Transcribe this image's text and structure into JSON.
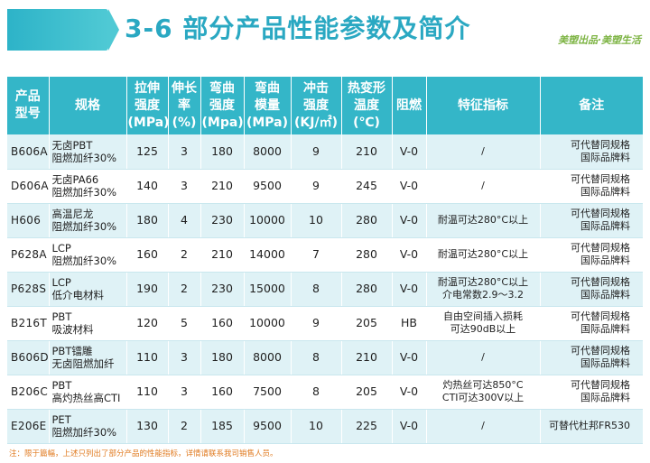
{
  "header": {
    "title": "3-6 部分产品性能参数及简介",
    "brand": "美塑出品·美塑生活",
    "accent_color": "#34b6c8"
  },
  "table": {
    "columns": [
      [
        "产品",
        "型号"
      ],
      [
        "规格"
      ],
      [
        "拉伸",
        "强度",
        "(MPa)"
      ],
      [
        "伸长",
        "率",
        "(%)"
      ],
      [
        "弯曲",
        "强度",
        "(Mpa)"
      ],
      [
        "弯曲",
        "模量",
        "(MPa)"
      ],
      [
        "冲击",
        "强度",
        "(KJ/㎡)"
      ],
      [
        "热变形",
        "温度",
        "(℃)"
      ],
      [
        "阻燃"
      ],
      [
        "特征指标"
      ],
      [
        "备注"
      ]
    ],
    "rows": [
      {
        "model": "B606A",
        "spec": [
          "无卤PBT",
          "阻燃加纤30%"
        ],
        "tensile": "125",
        "elongation": "3",
        "flex_strength": "180",
        "flex_modulus": "8000",
        "impact": "9",
        "hdt": "210",
        "flame": "V-0",
        "feature": [
          "/"
        ],
        "remark": [
          "可代替同规格",
          "国际品牌料"
        ]
      },
      {
        "model": "D606A",
        "spec": [
          "无卤PA66",
          "阻燃加纤30%"
        ],
        "tensile": "140",
        "elongation": "3",
        "flex_strength": "210",
        "flex_modulus": "9500",
        "impact": "9",
        "hdt": "245",
        "flame": "V-0",
        "feature": [
          "/"
        ],
        "remark": [
          "可代替同规格",
          "国际品牌料"
        ]
      },
      {
        "model": "H606",
        "spec": [
          "高温尼龙",
          "阻燃加纤30%"
        ],
        "tensile": "180",
        "elongation": "4",
        "flex_strength": "230",
        "flex_modulus": "10000",
        "impact": "10",
        "hdt": "280",
        "flame": "V-0",
        "feature": [
          "耐温可达280°C以上"
        ],
        "remark": [
          "可代替同规格",
          "国际品牌料"
        ]
      },
      {
        "model": "P628A",
        "spec": [
          "LCP",
          "阻燃加纤30%"
        ],
        "tensile": "160",
        "elongation": "2",
        "flex_strength": "210",
        "flex_modulus": "14000",
        "impact": "7",
        "hdt": "280",
        "flame": "V-0",
        "feature": [
          "耐温可达280°C以上"
        ],
        "remark": [
          "可代替同规格",
          "国际品牌料"
        ]
      },
      {
        "model": "P628S",
        "spec": [
          "LCP",
          "低介电材料"
        ],
        "tensile": "190",
        "elongation": "2",
        "flex_strength": "230",
        "flex_modulus": "15000",
        "impact": "8",
        "hdt": "280",
        "flame": "V-0",
        "feature": [
          "耐温可达280°C以上",
          "介电常数2.9～3.2"
        ],
        "remark": [
          "可代替同规格",
          "国际品牌料"
        ]
      },
      {
        "model": "B216T",
        "spec": [
          "PBT",
          "吸波材料"
        ],
        "tensile": "120",
        "elongation": "5",
        "flex_strength": "160",
        "flex_modulus": "10000",
        "impact": "9",
        "hdt": "205",
        "flame": "HB",
        "feature": [
          "自由空间插入损耗",
          "可达90dB以上"
        ],
        "remark": [
          "可代替同规格",
          "国际品牌料"
        ]
      },
      {
        "model": "B606D",
        "spec": [
          "PBT镭雕",
          "无卤阻燃加纤"
        ],
        "tensile": "110",
        "elongation": "3",
        "flex_strength": "180",
        "flex_modulus": "8000",
        "impact": "8",
        "hdt": "210",
        "flame": "V-0",
        "feature": [
          "/"
        ],
        "remark": [
          "可代替同规格",
          "国际品牌料"
        ]
      },
      {
        "model": "B206C",
        "spec": [
          "PBT",
          "高灼热丝高CTI"
        ],
        "tensile": "110",
        "elongation": "3",
        "flex_strength": "160",
        "flex_modulus": "7500",
        "impact": "8",
        "hdt": "205",
        "flame": "V-0",
        "feature": [
          "灼热丝可达850°C",
          "CTI可达300V以上"
        ],
        "remark": [
          "可代替同规格",
          "国际品牌料"
        ]
      },
      {
        "model": "E206E",
        "spec": [
          "PET",
          "阻燃加纤30%"
        ],
        "tensile": "130",
        "elongation": "2",
        "flex_strength": "185",
        "flex_modulus": "9500",
        "impact": "10",
        "hdt": "225",
        "flame": "V-0",
        "feature": [
          "/"
        ],
        "remark": [
          "可替代杜邦FR530"
        ]
      }
    ]
  },
  "footnote": "注：限于篇幅，上述只列出了部分产品的性能指标，详情请联系我司销售人员。"
}
